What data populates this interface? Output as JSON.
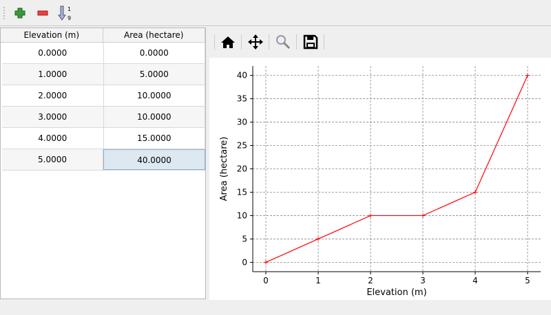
{
  "toolbar": {
    "add": "add-row",
    "remove": "remove-row",
    "sort": "sort-ascending",
    "sort_top": "1",
    "sort_bottom": "9"
  },
  "table": {
    "headers": [
      "Elevation (m)",
      "Area (hectare)"
    ],
    "rows": [
      [
        "0.0000",
        "0.0000"
      ],
      [
        "1.0000",
        "5.0000"
      ],
      [
        "2.0000",
        "10.0000"
      ],
      [
        "3.0000",
        "10.0000"
      ],
      [
        "4.0000",
        "15.0000"
      ],
      [
        "5.0000",
        "40.0000"
      ]
    ]
  },
  "plot_toolbar": [
    "home",
    "pan",
    "zoom",
    "save"
  ],
  "chart_data": {
    "type": "line",
    "x": [
      0,
      1,
      2,
      3,
      4,
      5
    ],
    "y": [
      0,
      5,
      10,
      10,
      15,
      40
    ],
    "xlabel": "Elevation (m)",
    "ylabel": "Area (hectare)",
    "xlim": [
      -0.25,
      5.25
    ],
    "ylim": [
      -2,
      42
    ],
    "xticks": [
      0,
      1,
      2,
      3,
      4,
      5
    ],
    "yticks": [
      0,
      5,
      10,
      15,
      20,
      25,
      30,
      35,
      40
    ],
    "grid": true,
    "color": "#ff0000",
    "marker": "+"
  }
}
